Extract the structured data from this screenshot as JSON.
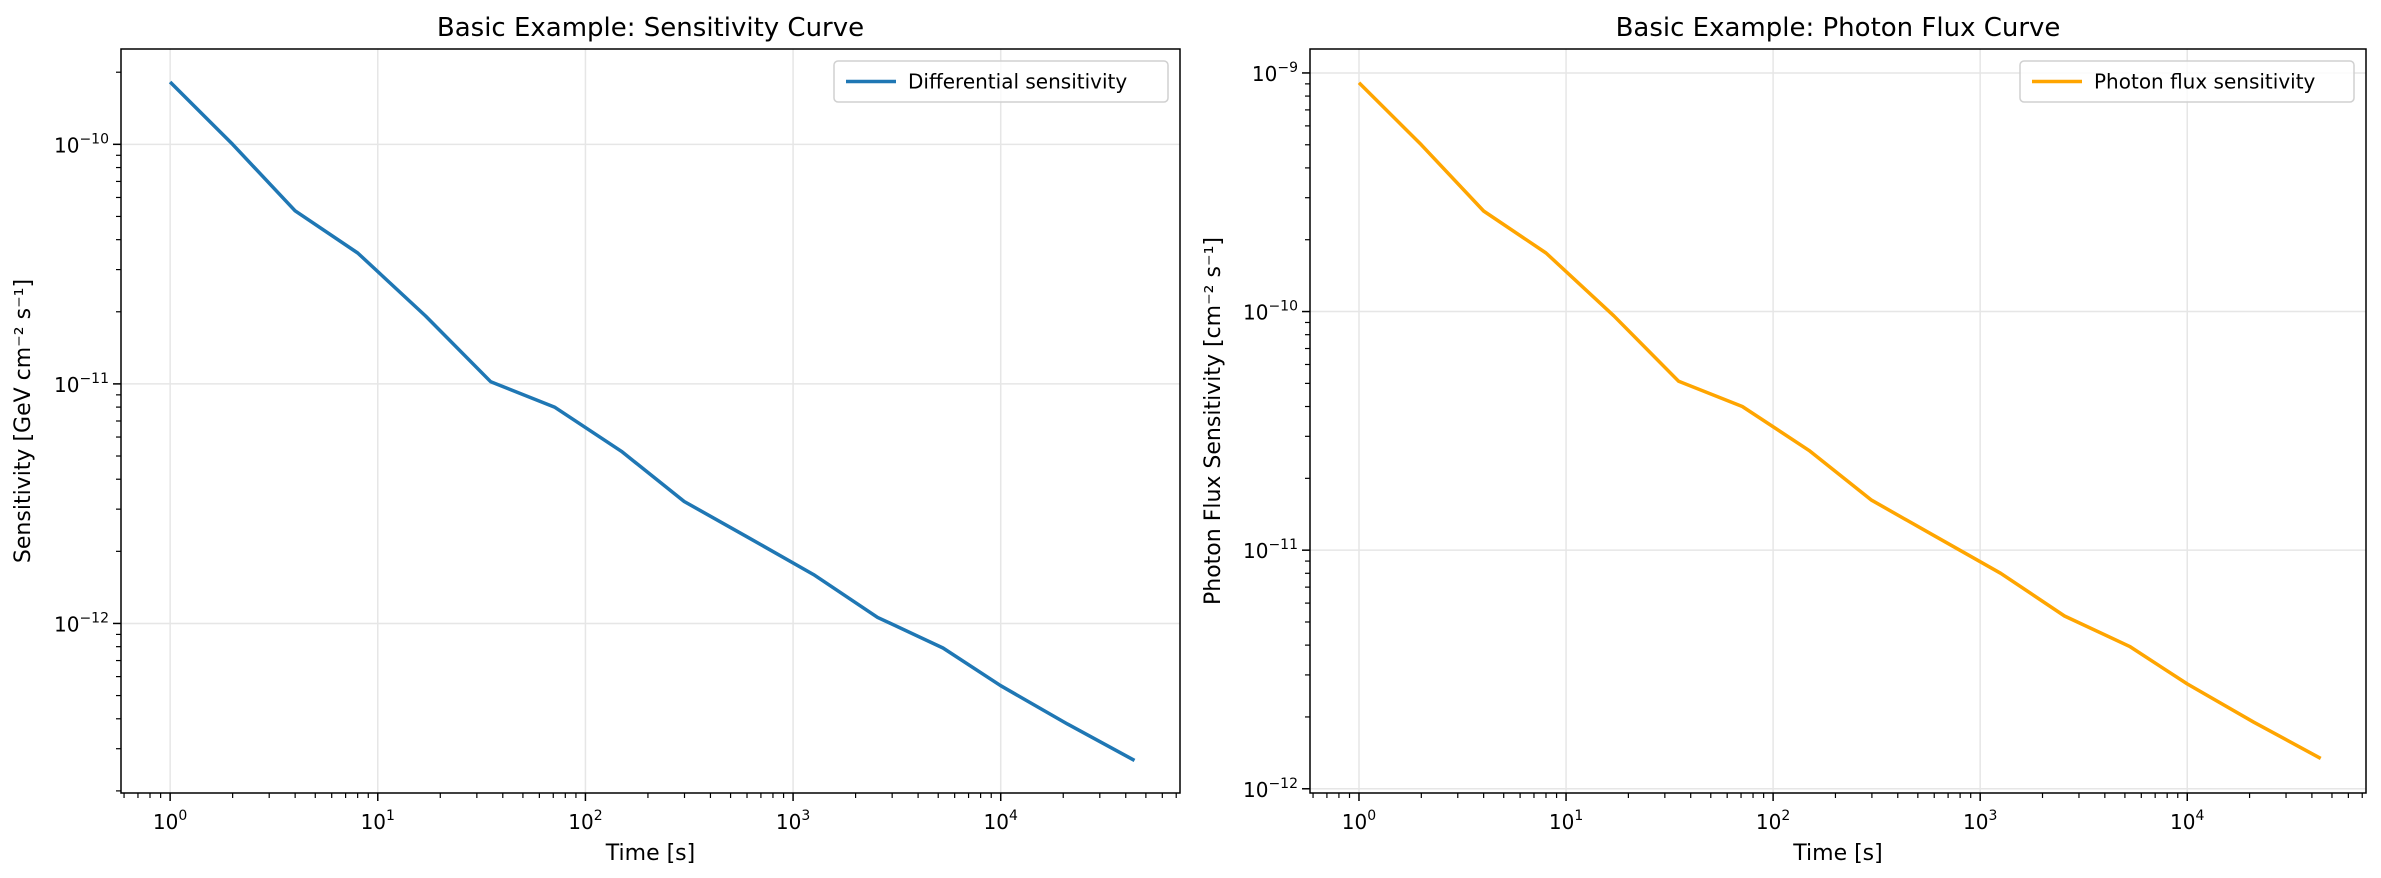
{
  "chart_data": [
    {
      "type": "line",
      "title": "Basic Example: Sensitivity Curve",
      "xlabel": "Time [s]",
      "ylabel": "Sensitivity [GeV cm⁻² s⁻¹]",
      "xscale": "log",
      "yscale": "log",
      "xlim": [
        0.58,
        73000
      ],
      "ylim": [
        1.96e-13,
        2.5e-10
      ],
      "xticks": [
        {
          "v": 1,
          "e": "0"
        },
        {
          "v": 10,
          "e": "1"
        },
        {
          "v": 100,
          "e": "2"
        },
        {
          "v": 1000,
          "e": "3"
        },
        {
          "v": 10000,
          "e": "4"
        }
      ],
      "yticks": [
        {
          "v": 1e-12,
          "e": "−12"
        },
        {
          "v": 1e-11,
          "e": "−11"
        },
        {
          "v": 1e-10,
          "e": "−10"
        }
      ],
      "grid": true,
      "legend_position": "top-right",
      "series": [
        {
          "name": "Differential sensitivity",
          "color": "#1f77b4",
          "x": [
            1,
            2,
            4,
            8,
            17,
            35,
            71,
            149,
            299,
            600,
            1256,
            2553,
            5270,
            10000,
            21000,
            44100
          ],
          "y": [
            1.82e-10,
            1e-10,
            5.28e-11,
            3.52e-11,
            1.92e-11,
            1.02e-11,
            8e-12,
            5.23e-12,
            3.23e-12,
            2.3e-12,
            1.6e-12,
            1.06e-12,
            7.9e-13,
            5.5e-13,
            3.8e-13,
            2.68e-13
          ]
        }
      ]
    },
    {
      "type": "line",
      "title": "Basic Example: Photon Flux Curve",
      "xlabel": "Time [s]",
      "ylabel": "Photon Flux Sensitivity [cm⁻² s⁻¹]",
      "xscale": "log",
      "yscale": "log",
      "xlim": [
        0.58,
        73000
      ],
      "ylim": [
        9.6e-13,
        1.26e-09
      ],
      "xticks": [
        {
          "v": 1,
          "e": "0"
        },
        {
          "v": 10,
          "e": "1"
        },
        {
          "v": 100,
          "e": "2"
        },
        {
          "v": 1000,
          "e": "3"
        },
        {
          "v": 10000,
          "e": "4"
        }
      ],
      "yticks": [
        {
          "v": 1e-12,
          "e": "−12"
        },
        {
          "v": 1e-11,
          "e": "−11"
        },
        {
          "v": 1e-10,
          "e": "−10"
        },
        {
          "v": 1e-09,
          "e": "−9"
        }
      ],
      "grid": true,
      "legend_position": "top-right",
      "series": [
        {
          "name": "Photon flux sensitivity",
          "color": "#ffa500",
          "x": [
            1,
            2,
            4,
            8,
            17,
            35,
            71,
            149,
            299,
            600,
            1256,
            2553,
            5270,
            10000,
            21000,
            44100
          ],
          "y": [
            9.1e-10,
            5e-10,
            2.64e-10,
            1.76e-10,
            9.6e-11,
            5.1e-11,
            4e-11,
            2.62e-11,
            1.62e-11,
            1.15e-11,
            8e-12,
            5.3e-12,
            3.95e-12,
            2.75e-12,
            1.9e-12,
            1.34e-12
          ]
        }
      ]
    }
  ]
}
